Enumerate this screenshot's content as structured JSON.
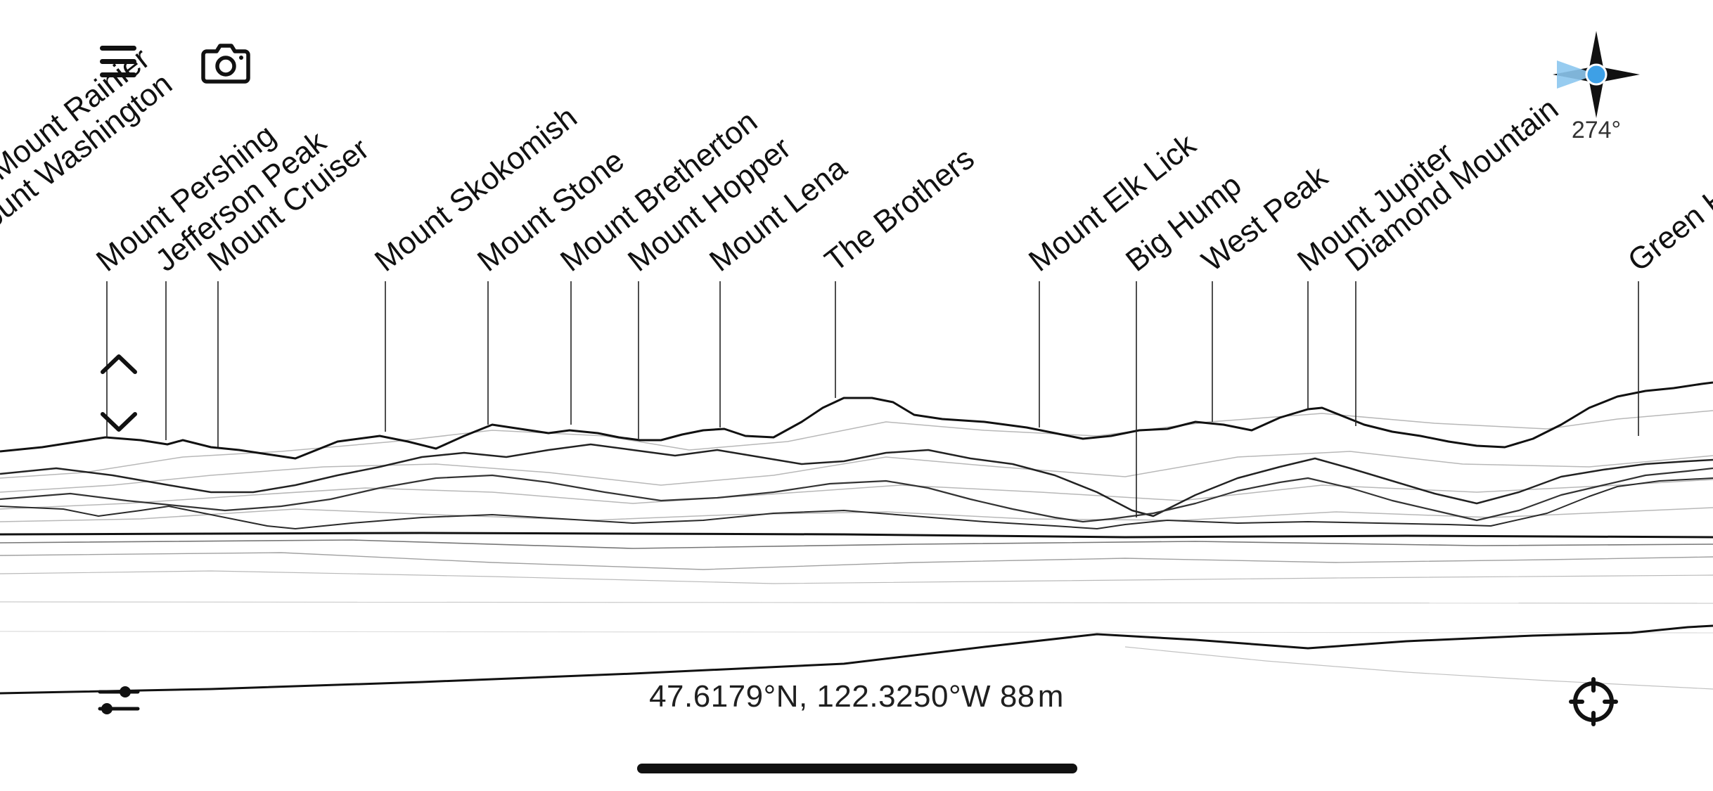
{
  "peaks": [
    {
      "name": "Mount Rainier",
      "display": "Mount Rainier"
    },
    {
      "name": "Mount Washington",
      "display": "Mount Washington"
    },
    {
      "name": "Mount Pershing",
      "display": "Mount Pershing"
    },
    {
      "name": "Jefferson Peak",
      "display": "Jefferson Peak"
    },
    {
      "name": "Mount Cruiser",
      "display": "Mount Cruiser"
    },
    {
      "name": "Mount Skokomish",
      "display": "Mount Skokomish"
    },
    {
      "name": "Mount Stone",
      "display": "Mount Stone"
    },
    {
      "name": "Mount Bretherton",
      "display": "Mount Bretherton"
    },
    {
      "name": "Mount Hopper",
      "display": "Mount Hopper"
    },
    {
      "name": "Mount Lena",
      "display": "Mount Lena"
    },
    {
      "name": "The Brothers",
      "display": "The Brothers"
    },
    {
      "name": "Mount Elk Lick",
      "display": "Mount Elk Lick"
    },
    {
      "name": "Big Hump",
      "display": "Big Hump"
    },
    {
      "name": "West Peak",
      "display": "West Peak"
    },
    {
      "name": "Mount Jupiter",
      "display": "Mount Jupiter"
    },
    {
      "name": "Diamond Mountain",
      "display": "Diamond Mountain"
    },
    {
      "name": "Green Hill",
      "display": "Green Hill"
    }
  ],
  "compass": {
    "heading": "274°",
    "icon": "compass-icon",
    "cone_color": "#8cc6ee",
    "dot_color": "#3ea0e6"
  },
  "location": {
    "coordinates": "47.6179°N, 122.3250°W",
    "elevation": "88",
    "unit": "m"
  },
  "icons": {
    "menu": "hamburger-menu-icon",
    "camera": "camera-icon",
    "up": "chevron-up-icon",
    "down": "chevron-down-icon",
    "filter": "sliders-icon",
    "locate": "crosshair-locate-icon"
  }
}
